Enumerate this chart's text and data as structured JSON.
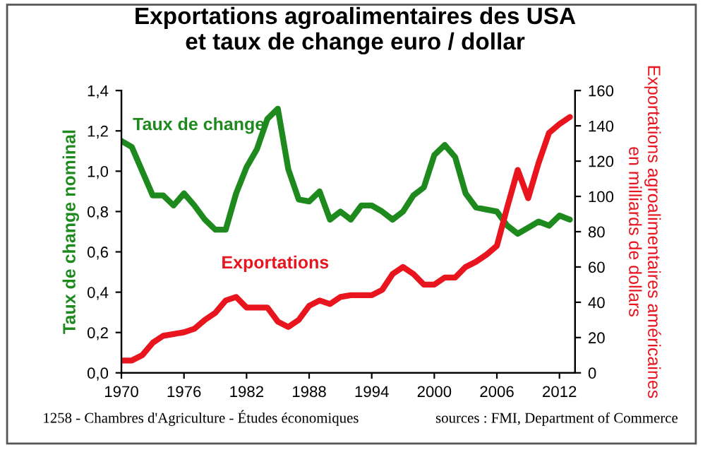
{
  "chart_data": {
    "type": "line",
    "title": "Exportations agroalimentaires des USA\net taux de change euro / dollar",
    "x": [
      1970,
      1971,
      1972,
      1973,
      1974,
      1975,
      1976,
      1977,
      1978,
      1979,
      1980,
      1981,
      1982,
      1983,
      1984,
      1985,
      1986,
      1987,
      1988,
      1989,
      1990,
      1991,
      1992,
      1993,
      1994,
      1995,
      1996,
      1997,
      1998,
      1999,
      2000,
      2001,
      2002,
      2003,
      2004,
      2005,
      2006,
      2007,
      2008,
      2009,
      2010,
      2011,
      2012,
      2013
    ],
    "series": [
      {
        "name": "Taux de change",
        "color": "#1e8a1e",
        "values": [
          1.15,
          1.12,
          1.0,
          0.88,
          0.88,
          0.83,
          0.89,
          0.83,
          0.76,
          0.71,
          0.71,
          0.89,
          1.02,
          1.11,
          1.26,
          1.31,
          1.01,
          0.86,
          0.85,
          0.9,
          0.76,
          0.8,
          0.76,
          0.83,
          0.83,
          0.8,
          0.76,
          0.8,
          0.88,
          0.92,
          1.08,
          1.13,
          1.07,
          0.89,
          0.82,
          0.81,
          0.8,
          0.73,
          0.69,
          0.72,
          0.75,
          0.73,
          0.78,
          0.76
        ]
      },
      {
        "name": "Exportations",
        "color": "#e8141e",
        "axis": "y2",
        "values": [
          7,
          7,
          10,
          17,
          21,
          22,
          23,
          25,
          30,
          34,
          41,
          43,
          37,
          37,
          37,
          29,
          26,
          30,
          38,
          41,
          39,
          43,
          44,
          44,
          44,
          47,
          56,
          60,
          56,
          50,
          50,
          54,
          54,
          60,
          63,
          67,
          72,
          94,
          115,
          99,
          119,
          136,
          141,
          145
        ]
      }
    ],
    "ylabel": "Taux de change nominal",
    "y2label": "Exportations agroalimentaires américaines\nen milliards de dollars",
    "xlim": [
      1970,
      2013.5
    ],
    "xticks": [
      1970,
      1976,
      1982,
      1988,
      1994,
      2000,
      2006,
      2012
    ],
    "ylim": [
      0,
      1.4
    ],
    "yticks": [
      {
        "value": 0,
        "label": "0,0"
      },
      {
        "value": 0.2,
        "label": "0,2"
      },
      {
        "value": 0.4,
        "label": "0,4"
      },
      {
        "value": 0.6,
        "label": "0,6"
      },
      {
        "value": 0.8,
        "label": "0,8"
      },
      {
        "value": 1.0,
        "label": "1,0"
      },
      {
        "value": 1.2,
        "label": "1,2"
      },
      {
        "value": 1.4,
        "label": "1,4"
      }
    ],
    "y2lim": [
      0,
      160
    ],
    "y2ticks": [
      0,
      20,
      40,
      60,
      80,
      100,
      120,
      140,
      160
    ],
    "grid": false,
    "legend": false,
    "annotations": [
      "1258 - Chambres d'Agriculture - Études économiques",
      "sources : FMI, Department of Commerce"
    ]
  }
}
